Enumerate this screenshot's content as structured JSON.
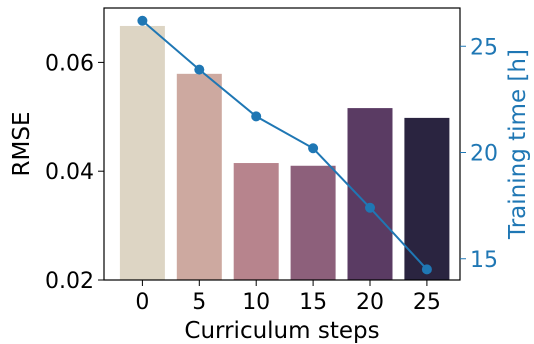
{
  "chart_data": {
    "type": "bar",
    "xlabel": "Curriculum steps",
    "ylabel": "RMSE",
    "y2label": "Training time [h]",
    "categories": [
      "0",
      "5",
      "10",
      "15",
      "20",
      "25"
    ],
    "ylim": [
      0.02,
      0.07
    ],
    "yticks": [
      0.02,
      0.04,
      0.06
    ],
    "yticklabels": [
      "0.02",
      "0.04",
      "0.06"
    ],
    "y2lim": [
      14.0,
      26.8
    ],
    "y2ticks": [
      15,
      20,
      25
    ],
    "y2ticklabels": [
      "15",
      "20",
      "25"
    ],
    "series": [
      {
        "type": "bar",
        "axis": "left",
        "values": [
          0.0667,
          0.0579,
          0.0415,
          0.041,
          0.0516,
          0.0498
        ],
        "colors": [
          "#ddd5c4",
          "#cda9a0",
          "#b7848d",
          "#8d607b",
          "#5a3b63",
          "#2a2440"
        ]
      },
      {
        "type": "line",
        "axis": "right",
        "values": [
          26.2,
          23.9,
          21.7,
          20.2,
          17.4,
          14.5
        ],
        "color": "#1f77b4"
      }
    ],
    "grid": false,
    "legend": "none",
    "right_axis_color": "#1f77b4"
  }
}
